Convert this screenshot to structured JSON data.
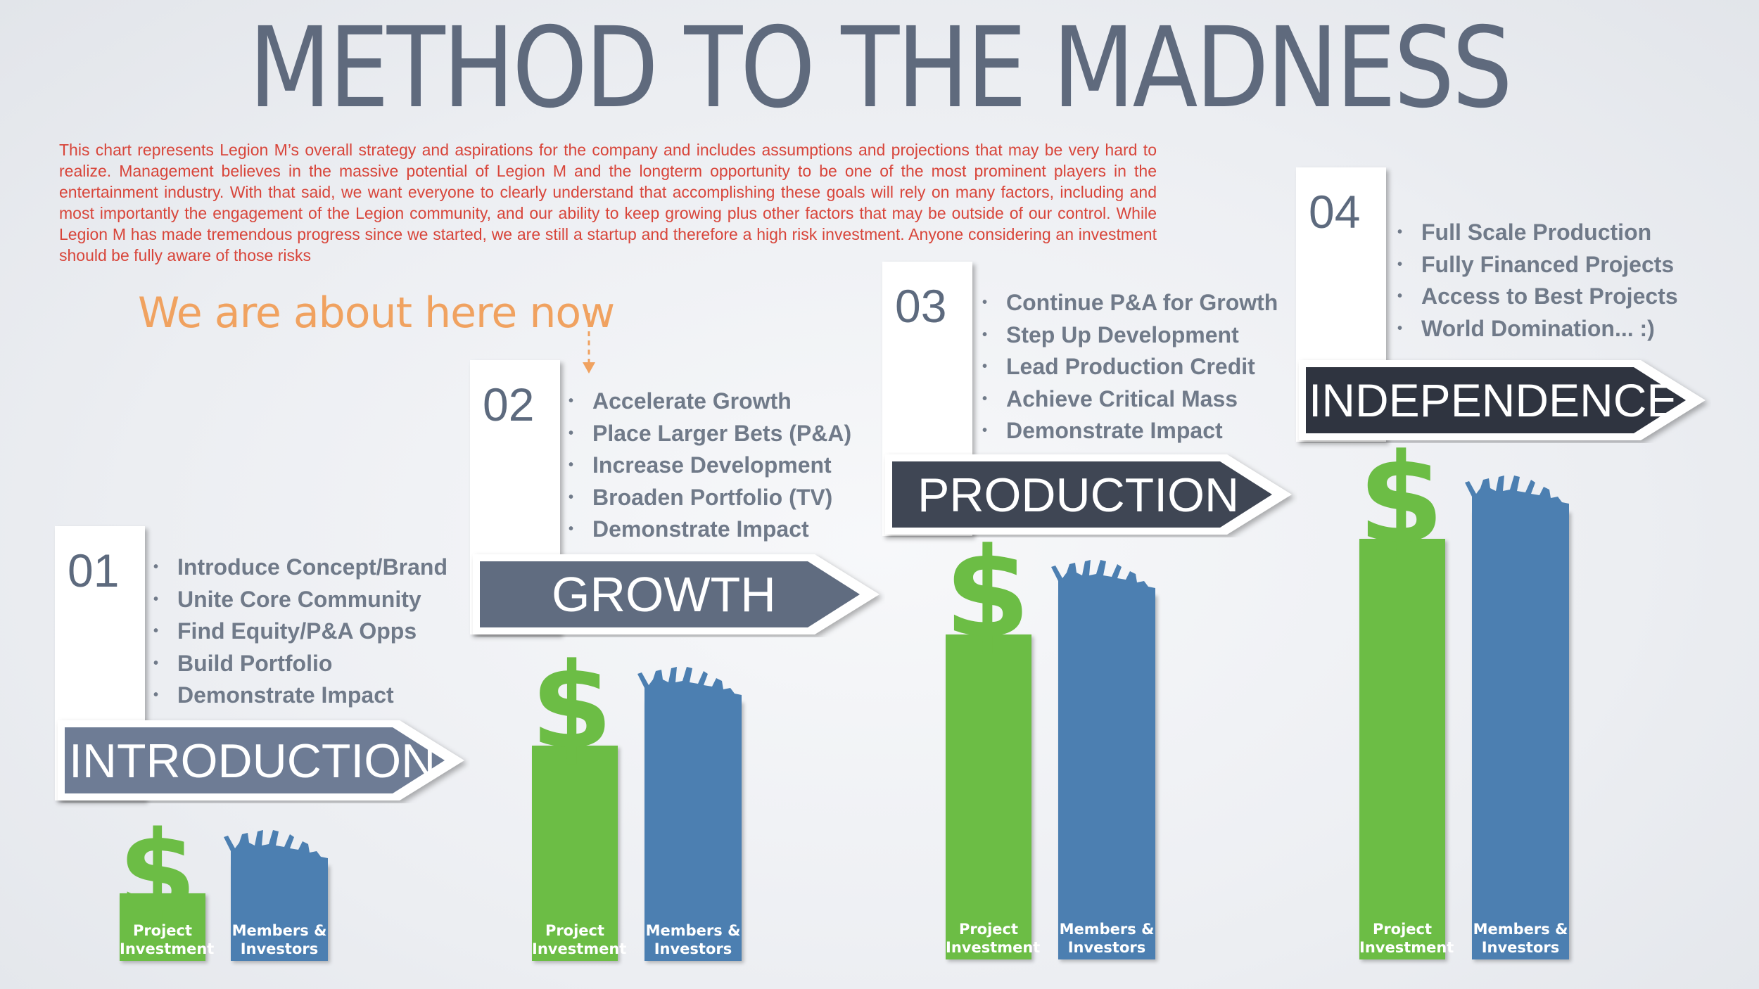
{
  "title": "METHOD TO THE MADNESS",
  "disclaimer": "This chart represents Legion M’s overall strategy and aspirations for the company and includes assumptions and projections that may be very hard to realize. Management believes in the massive potential of Legion M and the longterm opportunity to be one of the most prominent players in the entertainment industry. With that said, we want everyone to clearly understand that accomplishing these goals will rely on many factors, including and most importantly the engagement of the Legion community, and our ability to keep growing plus other factors that may be outside of our control. While Legion M has made tremendous progress since we started, we are still a startup and therefore a high risk investment. Anyone considering an investment should be fully aware of those risks",
  "here_note": "We are about here now",
  "colors": {
    "title": "#5f6a7d",
    "disclaimer": "#d8453a",
    "here_note": "#f0a260",
    "green_bar": "#6cbd45",
    "blue_bar": "#4c7fb1",
    "banner_intro": "#6e7c95",
    "banner_growth": "#606c80",
    "banner_production": "#3f4654",
    "banner_independence": "#2f3440"
  },
  "bar_labels": {
    "project": [
      "Project",
      "Investment"
    ],
    "members": [
      "Members &",
      "Investors"
    ]
  },
  "stages": [
    {
      "number": "01",
      "name": "INTRODUCTION",
      "bullets": [
        "Introduce Concept/Brand",
        "Unite Core Community",
        "Find Equity/P&A Opps",
        "Build Portfolio",
        "Demonstrate Impact"
      ]
    },
    {
      "number": "02",
      "name": "GROWTH",
      "bullets": [
        "Accelerate Growth",
        "Place Larger Bets (P&A)",
        "Increase Development",
        "Broaden Portfolio (TV)",
        "Demonstrate Impact"
      ]
    },
    {
      "number": "03",
      "name": "PRODUCTION",
      "bullets": [
        "Continue P&A for Growth",
        "Step Up Development",
        "Lead Production Credit",
        "Achieve Critical Mass",
        "Demonstrate Impact"
      ]
    },
    {
      "number": "04",
      "name": "INDEPENDENCE",
      "bullets": [
        "Full Scale Production",
        "Fully Financed Projects",
        "Access to Best Projects",
        "World Domination... :)"
      ]
    }
  ]
}
